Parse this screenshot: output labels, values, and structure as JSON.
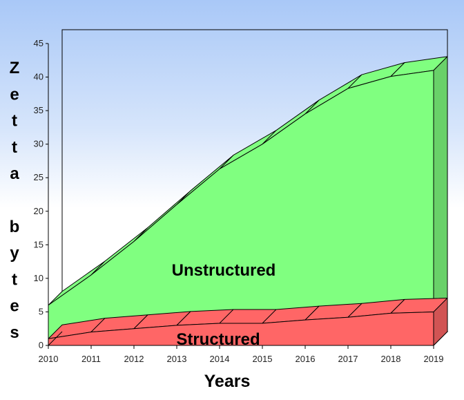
{
  "chart_data": {
    "type": "area",
    "three_d": true,
    "stacked": true,
    "categories": [
      "2010",
      "2011",
      "2012",
      "2013",
      "2014",
      "2015",
      "2016",
      "2017",
      "2018",
      "2019"
    ],
    "series": [
      {
        "name": "Structured",
        "values": [
          1,
          2,
          2.5,
          3,
          3.3,
          3.3,
          3.8,
          4.2,
          4.8,
          5
        ],
        "color": "#ff6666"
      },
      {
        "name": "Unstructured",
        "values": [
          5,
          8.5,
          13,
          18,
          23,
          26.7,
          30.7,
          34.1,
          35.3,
          36
        ],
        "color": "#80ff80"
      }
    ],
    "ylim": [
      0,
      45
    ],
    "yticks": [
      0,
      5,
      10,
      15,
      20,
      25,
      30,
      35,
      40,
      45
    ],
    "xlabel": "Years",
    "ylabel": "Zetta bytes",
    "legend": "labels inside areas",
    "grid": false
  },
  "colors": {
    "background_top": "#a9c8f7",
    "background_bottom": "#ffffff",
    "structured_fill": "#ff6666",
    "unstructured_fill": "#80ff80"
  }
}
